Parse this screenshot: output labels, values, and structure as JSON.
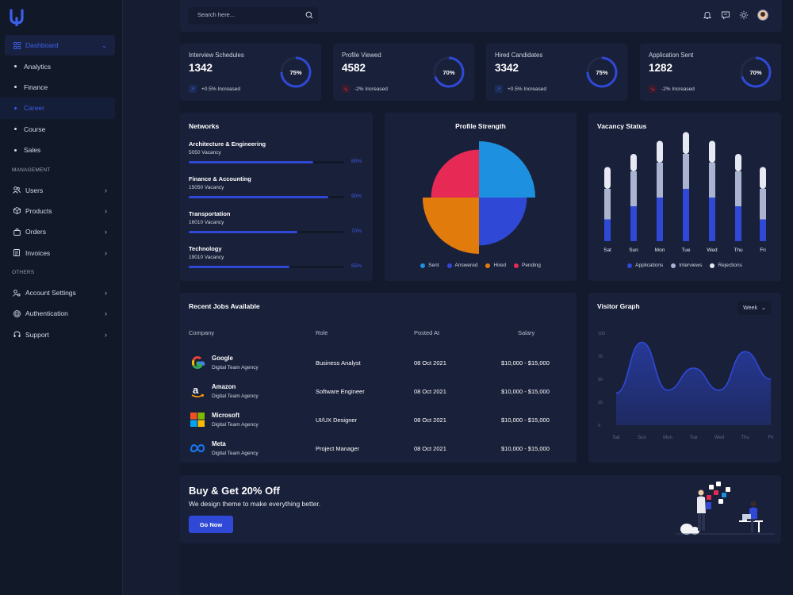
{
  "search": {
    "placeholder": "Search here..."
  },
  "sidebar": {
    "items": [
      {
        "label": "Dashboard",
        "icon": "grid-icon",
        "active": true
      },
      {
        "label": "Analytics",
        "sub": true
      },
      {
        "label": "Finance",
        "sub": true
      },
      {
        "label": "Career",
        "sub": true,
        "active": true
      },
      {
        "label": "Course",
        "sub": true
      },
      {
        "label": "Sales",
        "sub": true
      }
    ],
    "management_label": "MANAGEMENT",
    "management": [
      {
        "label": "Users",
        "icon": "users-icon"
      },
      {
        "label": "Products",
        "icon": "box-icon"
      },
      {
        "label": "Orders",
        "icon": "bag-icon"
      },
      {
        "label": "Invoices",
        "icon": "invoice-icon"
      }
    ],
    "others_label": "OTHERS",
    "others": [
      {
        "label": "Account Settings",
        "icon": "user-gear-icon"
      },
      {
        "label": "Authentication",
        "icon": "fingerprint-icon"
      },
      {
        "label": "Support",
        "icon": "headset-icon"
      }
    ]
  },
  "stats": [
    {
      "label": "Interview Schedules",
      "value": "1342",
      "change": "+0.5% Increased",
      "trend": "up",
      "percent": 75,
      "percent_label": "75%"
    },
    {
      "label": "Profile Viewed",
      "value": "4582",
      "change": "-2% Increased",
      "trend": "down",
      "percent": 70,
      "percent_label": "70%"
    },
    {
      "label": "Hired Candidates",
      "value": "3342",
      "change": "+0.5% Increased",
      "trend": "up",
      "percent": 75,
      "percent_label": "75%"
    },
    {
      "label": "Application Sent",
      "value": "1282",
      "change": "-2% Increased",
      "trend": "down",
      "percent": 70,
      "percent_label": "70%"
    }
  ],
  "networks": {
    "title": "Networks",
    "items": [
      {
        "name": "Architecture & Engineering",
        "vacancy": "5050 Vacancy",
        "percent": 80,
        "percent_label": "80%"
      },
      {
        "name": "Finance & Accounting",
        "vacancy": "15050 Vacancy",
        "percent": 90,
        "percent_label": "90%"
      },
      {
        "name": "Transportation",
        "vacancy": "16010 Vacancy",
        "percent": 70,
        "percent_label": "70%"
      },
      {
        "name": "Technology",
        "vacancy": "19010 Vacancy",
        "percent": 65,
        "percent_label": "65%"
      }
    ]
  },
  "profile_strength": {
    "title": "Profile Strength"
  },
  "vacancy_status": {
    "title": "Vacancy Status"
  },
  "jobs": {
    "title": "Recent Jobs Available",
    "headers": [
      "Company",
      "Role",
      "Posted At",
      "Salary"
    ],
    "rows": [
      {
        "company": "Google",
        "agency": "Digital Team Agency",
        "role": "Business Analyst",
        "posted": "08 Oct 2021",
        "salary": "$10,000 - $15,000",
        "logo": "google-logo-icon"
      },
      {
        "company": "Amazon",
        "agency": "Digital Team Agency",
        "role": "Software Engineer",
        "posted": "08 Oct 2021",
        "salary": "$10,000 - $15,000",
        "logo": "amazon-logo-icon"
      },
      {
        "company": "Microsoft",
        "agency": "Digital Team Agency",
        "role": "UI/UX Designer",
        "posted": "08 Oct 2021",
        "salary": "$10,000 - $15,000",
        "logo": "microsoft-logo-icon"
      },
      {
        "company": "Meta",
        "agency": "Digital Team Agency",
        "role": "Project Manager",
        "posted": "08 Oct 2021",
        "salary": "$10,000 - $15,000",
        "logo": "meta-logo-icon"
      }
    ]
  },
  "visitor": {
    "title": "Visitor Graph",
    "range": "Week"
  },
  "promo": {
    "title": "Buy & Get 20% Off",
    "subtitle": "We design theme to make everything better.",
    "button": "Go Now"
  },
  "colors": {
    "accent": "#3d5eea",
    "sent": "#1e90e0",
    "answered": "#2f49d6",
    "hired": "#e07b0c",
    "pending": "#e62a55",
    "interviews": "#c9cfe2",
    "rejections": "#e6e9f2"
  },
  "chart_data": [
    {
      "type": "pie",
      "title": "Profile Strength",
      "categories": [
        "Sent",
        "Answered",
        "Hired",
        "Pending"
      ],
      "values": [
        25,
        25,
        25,
        25
      ],
      "radii_relative": [
        1.0,
        0.85,
        1.0,
        0.85
      ],
      "colors": [
        "#1e90e0",
        "#2f49d6",
        "#e07b0c",
        "#e62a55"
      ],
      "legend": "bottom"
    },
    {
      "type": "bar",
      "title": "Vacancy Status",
      "categories": [
        "Sat",
        "Sun",
        "Mon",
        "Tue",
        "Wed",
        "Thu",
        "Fri"
      ],
      "series": [
        {
          "name": "Applications",
          "values": [
            25,
            40,
            50,
            60,
            50,
            40,
            25
          ],
          "color": "#2f49d6"
        },
        {
          "name": "Interviews",
          "values": [
            35,
            40,
            40,
            40,
            40,
            40,
            35
          ],
          "color": "#aab3cf"
        },
        {
          "name": "Rejections",
          "values": [
            25,
            20,
            25,
            25,
            25,
            20,
            25
          ],
          "color": "#e6e9f2"
        }
      ],
      "stacked": true,
      "legend": "bottom"
    },
    {
      "type": "area",
      "title": "Visitor Graph",
      "categories": [
        "Sat",
        "Sun",
        "Mon",
        "Tue",
        "Wed",
        "Thu",
        "Fri"
      ],
      "y_ticks": [
        0,
        25,
        50,
        75,
        100
      ],
      "ylim": [
        0,
        100
      ],
      "values": [
        35,
        90,
        38,
        62,
        38,
        80,
        50
      ],
      "color": "#2f49d6",
      "grid": false
    }
  ]
}
